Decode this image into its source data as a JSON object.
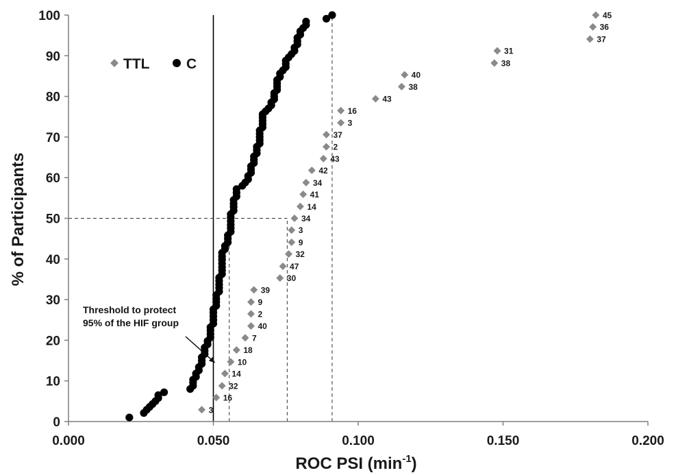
{
  "chart_data": {
    "type": "scatter",
    "xlabel": "ROC PSI (min",
    "xlabel_sup": "-1",
    "xlabel_close": ")",
    "ylabel": "% of Participants",
    "xlim": [
      0.0,
      0.2
    ],
    "ylim": [
      0,
      100
    ],
    "x_ticks": [
      "0.000",
      "0.050",
      "0.100",
      "0.150",
      "0.200"
    ],
    "y_ticks": [
      "0",
      "10",
      "20",
      "30",
      "40",
      "50",
      "60",
      "70",
      "80",
      "90",
      "100"
    ],
    "legend_position": "upper-left",
    "series": [
      {
        "name": "TTL",
        "marker": "diamond",
        "color": "#8a8a8a",
        "points": [
          {
            "x": 0.046,
            "y": 2.9,
            "label": "3"
          },
          {
            "x": 0.051,
            "y": 5.9,
            "label": "16"
          },
          {
            "x": 0.053,
            "y": 8.8,
            "label": "32"
          },
          {
            "x": 0.054,
            "y": 11.8,
            "label": "14"
          },
          {
            "x": 0.056,
            "y": 14.7,
            "label": "10"
          },
          {
            "x": 0.058,
            "y": 17.6,
            "label": "18"
          },
          {
            "x": 0.061,
            "y": 20.6,
            "label": "7"
          },
          {
            "x": 0.063,
            "y": 23.5,
            "label": "40"
          },
          {
            "x": 0.063,
            "y": 26.5,
            "label": "2"
          },
          {
            "x": 0.063,
            "y": 29.4,
            "label": "9"
          },
          {
            "x": 0.064,
            "y": 32.4,
            "label": "39"
          },
          {
            "x": 0.073,
            "y": 35.3,
            "label": "30"
          },
          {
            "x": 0.074,
            "y": 38.2,
            "label": "47"
          },
          {
            "x": 0.076,
            "y": 41.2,
            "label": "32"
          },
          {
            "x": 0.077,
            "y": 44.1,
            "label": "9"
          },
          {
            "x": 0.077,
            "y": 47.1,
            "label": "3"
          },
          {
            "x": 0.078,
            "y": 50.0,
            "label": "34"
          },
          {
            "x": 0.08,
            "y": 52.9,
            "label": "14"
          },
          {
            "x": 0.081,
            "y": 55.9,
            "label": "41"
          },
          {
            "x": 0.082,
            "y": 58.8,
            "label": "34"
          },
          {
            "x": 0.084,
            "y": 61.8,
            "label": "42"
          },
          {
            "x": 0.088,
            "y": 64.7,
            "label": "43"
          },
          {
            "x": 0.089,
            "y": 67.6,
            "label": "2"
          },
          {
            "x": 0.089,
            "y": 70.6,
            "label": "37"
          },
          {
            "x": 0.094,
            "y": 73.5,
            "label": "3"
          },
          {
            "x": 0.094,
            "y": 76.5,
            "label": "16"
          },
          {
            "x": 0.106,
            "y": 79.4,
            "label": "43"
          },
          {
            "x": 0.115,
            "y": 82.4,
            "label": "38"
          },
          {
            "x": 0.116,
            "y": 85.3,
            "label": "40"
          },
          {
            "x": 0.147,
            "y": 88.2,
            "label": "38"
          },
          {
            "x": 0.148,
            "y": 91.2,
            "label": "31"
          },
          {
            "x": 0.18,
            "y": 94.1,
            "label": "37"
          },
          {
            "x": 0.181,
            "y": 97.1,
            "label": "36"
          },
          {
            "x": 0.182,
            "y": 100.0,
            "label": "45"
          }
        ]
      },
      {
        "name": "C",
        "marker": "circle",
        "color": "#000000",
        "points": [
          [
            0.021,
            1.0
          ],
          [
            0.026,
            2.1
          ],
          [
            0.027,
            2.9
          ],
          [
            0.028,
            3.6
          ],
          [
            0.029,
            4.3
          ],
          [
            0.03,
            5.0
          ],
          [
            0.031,
            5.8
          ],
          [
            0.031,
            6.5
          ],
          [
            0.033,
            7.2
          ],
          [
            0.042,
            8.0
          ],
          [
            0.043,
            8.8
          ],
          [
            0.043,
            9.6
          ],
          [
            0.043,
            10.3
          ],
          [
            0.044,
            11.0
          ],
          [
            0.044,
            11.8
          ],
          [
            0.045,
            12.6
          ],
          [
            0.045,
            13.4
          ],
          [
            0.046,
            14.2
          ],
          [
            0.046,
            15.0
          ],
          [
            0.046,
            15.8
          ],
          [
            0.047,
            16.6
          ],
          [
            0.047,
            17.4
          ],
          [
            0.047,
            18.2
          ],
          [
            0.048,
            19.0
          ],
          [
            0.048,
            19.8
          ],
          [
            0.049,
            20.7
          ],
          [
            0.049,
            21.5
          ],
          [
            0.049,
            22.4
          ],
          [
            0.049,
            23.2
          ],
          [
            0.05,
            24.1
          ],
          [
            0.05,
            25.0
          ],
          [
            0.05,
            25.9
          ],
          [
            0.05,
            26.8
          ],
          [
            0.05,
            27.6
          ],
          [
            0.051,
            28.5
          ],
          [
            0.051,
            29.4
          ],
          [
            0.051,
            30.2
          ],
          [
            0.051,
            31.1
          ],
          [
            0.052,
            32.0
          ],
          [
            0.052,
            32.9
          ],
          [
            0.052,
            33.7
          ],
          [
            0.052,
            34.6
          ],
          [
            0.052,
            35.4
          ],
          [
            0.053,
            36.3
          ],
          [
            0.053,
            37.2
          ],
          [
            0.053,
            38.0
          ],
          [
            0.053,
            38.9
          ],
          [
            0.053,
            39.8
          ],
          [
            0.053,
            40.6
          ],
          [
            0.053,
            41.5
          ],
          [
            0.054,
            42.4
          ],
          [
            0.054,
            43.2
          ],
          [
            0.055,
            44.1
          ],
          [
            0.055,
            45.0
          ],
          [
            0.055,
            45.8
          ],
          [
            0.056,
            46.7
          ],
          [
            0.056,
            47.6
          ],
          [
            0.056,
            48.4
          ],
          [
            0.056,
            49.3
          ],
          [
            0.056,
            50.2
          ],
          [
            0.056,
            51.0
          ],
          [
            0.057,
            51.9
          ],
          [
            0.057,
            52.8
          ],
          [
            0.057,
            53.6
          ],
          [
            0.057,
            54.5
          ],
          [
            0.058,
            55.4
          ],
          [
            0.058,
            56.3
          ],
          [
            0.058,
            57.2
          ],
          [
            0.06,
            58.0
          ],
          [
            0.061,
            58.8
          ],
          [
            0.062,
            59.6
          ],
          [
            0.062,
            60.4
          ],
          [
            0.063,
            61.2
          ],
          [
            0.063,
            62.0
          ],
          [
            0.063,
            62.8
          ],
          [
            0.064,
            63.6
          ],
          [
            0.064,
            64.4
          ],
          [
            0.064,
            65.2
          ],
          [
            0.065,
            66.0
          ],
          [
            0.065,
            66.8
          ],
          [
            0.065,
            67.6
          ],
          [
            0.066,
            68.4
          ],
          [
            0.066,
            69.2
          ],
          [
            0.066,
            70.0
          ],
          [
            0.066,
            70.8
          ],
          [
            0.066,
            71.6
          ],
          [
            0.067,
            72.4
          ],
          [
            0.067,
            73.2
          ],
          [
            0.067,
            74.0
          ],
          [
            0.067,
            74.8
          ],
          [
            0.067,
            75.6
          ],
          [
            0.068,
            76.3
          ],
          [
            0.069,
            77.0
          ],
          [
            0.07,
            77.8
          ],
          [
            0.07,
            78.5
          ],
          [
            0.071,
            79.3
          ],
          [
            0.071,
            80.0
          ],
          [
            0.071,
            80.8
          ],
          [
            0.072,
            81.6
          ],
          [
            0.072,
            82.4
          ],
          [
            0.072,
            83.2
          ],
          [
            0.072,
            84.0
          ],
          [
            0.073,
            84.8
          ],
          [
            0.073,
            85.6
          ],
          [
            0.074,
            86.4
          ],
          [
            0.075,
            87.2
          ],
          [
            0.075,
            88.0
          ],
          [
            0.075,
            88.8
          ],
          [
            0.076,
            89.6
          ],
          [
            0.077,
            90.4
          ],
          [
            0.078,
            91.2
          ],
          [
            0.078,
            92.0
          ],
          [
            0.079,
            92.8
          ],
          [
            0.079,
            93.6
          ],
          [
            0.079,
            94.4
          ],
          [
            0.08,
            95.2
          ],
          [
            0.08,
            96.0
          ],
          [
            0.081,
            96.8
          ],
          [
            0.082,
            97.6
          ],
          [
            0.082,
            98.4
          ],
          [
            0.089,
            99.1
          ],
          [
            0.091,
            100.0
          ]
        ]
      }
    ],
    "reference_lines": [
      {
        "orientation": "vertical",
        "x": 0.05,
        "style": "solid"
      },
      {
        "orientation": "vertical",
        "x": 0.0555,
        "y_to": 50,
        "style": "dashed"
      },
      {
        "orientation": "vertical",
        "x": 0.0755,
        "y_to": 50,
        "style": "dashed"
      },
      {
        "orientation": "vertical",
        "x": 0.091,
        "y_to": 100,
        "style": "dashed"
      },
      {
        "orientation": "horizontal",
        "y": 50,
        "x_to": 0.0755,
        "style": "dashed"
      }
    ],
    "annotation": {
      "lines": [
        "Threshold to protect",
        "95% of the HIF group"
      ],
      "arrow_to": {
        "x": 0.0505,
        "y": 14.5
      }
    }
  }
}
